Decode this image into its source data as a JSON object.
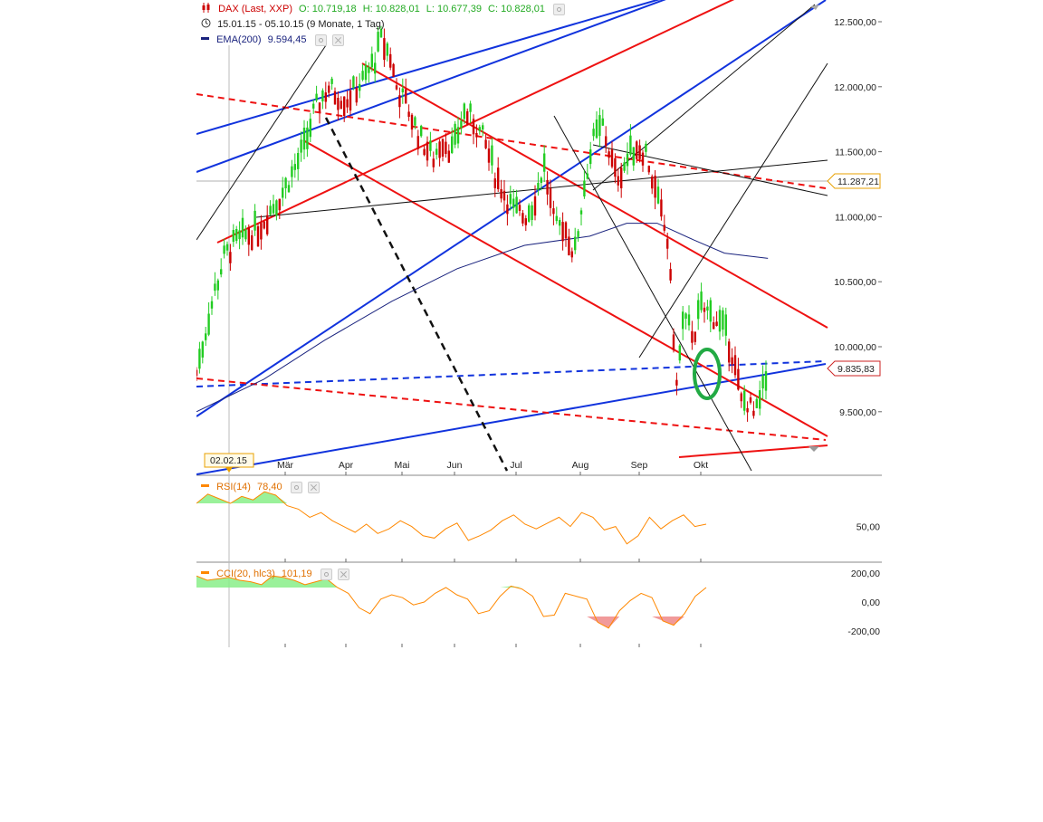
{
  "header": {
    "symbol": "DAX (Last, XXP)",
    "open": "O: 10.719,18",
    "high": "H: 10.828,01",
    "low": "L: 10.677,39",
    "close": "C: 10.828,01",
    "period": "15.01.15 - 05.10.15 (9 Monate, 1 Tag)",
    "ema_label": "EMA(200)",
    "ema_value": "9.594,45"
  },
  "indicators": {
    "rsi_label": "RSI(14)",
    "rsi_value": "78,40",
    "cci_label": "CCI(20, hlc3)",
    "cci_value": "101,19"
  },
  "colors": {
    "up": "#22cc22",
    "down": "#cc0000",
    "red_line": "#ee1111",
    "blue_line": "#1133dd",
    "ema": "#1a237e",
    "oscillator": "#ff8800",
    "green_fill": "#88ee88",
    "red_fill": "#ee8888",
    "marker_green": "#22aa44"
  },
  "chart_data": {
    "type": "candlestick",
    "y_axis_ticks": [
      "12.500,00",
      "12.000,00",
      "11.500,00",
      "11.000,00",
      "10.500,00",
      "10.000,00",
      "9.500,00"
    ],
    "x_axis_ticks": [
      "Mär",
      "Apr",
      "Mai",
      "Jun",
      "Jul",
      "Aug",
      "Sep",
      "Okt"
    ],
    "date_badge": "02.02.15",
    "price_labels": [
      "11.287,21",
      "9.835,83"
    ],
    "rsi_ticks": [
      "50,00"
    ],
    "cci_ticks": [
      "200,00",
      "0,00",
      "-200,00"
    ],
    "price_path": [
      [
        "2015-01-15",
        9800
      ],
      [
        "2015-01-19",
        10100
      ],
      [
        "2015-01-23",
        10400
      ],
      [
        "2015-01-28",
        10700
      ],
      [
        "2015-02-02",
        10800
      ],
      [
        "2015-02-06",
        10850
      ],
      [
        "2015-02-12",
        10900
      ],
      [
        "2015-02-18",
        11050
      ],
      [
        "2015-02-24",
        11200
      ],
      [
        "2015-03-02",
        11400
      ],
      [
        "2015-03-06",
        11550
      ],
      [
        "2015-03-10",
        11800
      ],
      [
        "2015-03-13",
        11900
      ],
      [
        "2015-03-17",
        12000
      ],
      [
        "2015-03-20",
        11950
      ],
      [
        "2015-03-25",
        11900
      ],
      [
        "2015-03-30",
        12000
      ],
      [
        "2015-04-02",
        12050
      ],
      [
        "2015-04-07",
        12200
      ],
      [
        "2015-04-10",
        12350
      ],
      [
        "2015-04-14",
        12250
      ],
      [
        "2015-04-17",
        12000
      ],
      [
        "2015-04-22",
        11850
      ],
      [
        "2015-04-28",
        11600
      ],
      [
        "2015-05-04",
        11450
      ],
      [
        "2015-05-08",
        11600
      ],
      [
        "2015-05-13",
        11500
      ],
      [
        "2015-05-18",
        11800
      ],
      [
        "2015-05-22",
        11750
      ],
      [
        "2015-05-27",
        11600
      ],
      [
        "2015-06-01",
        11350
      ],
      [
        "2015-06-05",
        11200
      ],
      [
        "2015-06-10",
        11050
      ],
      [
        "2015-06-15",
        11000
      ],
      [
        "2015-06-19",
        11100
      ],
      [
        "2015-06-24",
        11400
      ],
      [
        "2015-06-29",
        10900
      ],
      [
        "2015-07-03",
        10950
      ],
      [
        "2015-07-08",
        10700
      ],
      [
        "2015-07-13",
        11300
      ],
      [
        "2015-07-17",
        11600
      ],
      [
        "2015-07-21",
        11700
      ],
      [
        "2015-07-27",
        11300
      ],
      [
        "2015-07-31",
        11400
      ],
      [
        "2015-08-05",
        11550
      ],
      [
        "2015-08-10",
        11500
      ],
      [
        "2015-08-14",
        11200
      ],
      [
        "2015-08-20",
        10800
      ],
      [
        "2015-08-24",
        9700
      ],
      [
        "2015-08-27",
        10200
      ],
      [
        "2015-09-01",
        10100
      ],
      [
        "2015-09-04",
        10300
      ],
      [
        "2015-09-09",
        10250
      ],
      [
        "2015-09-14",
        10150
      ],
      [
        "2015-09-18",
        10000
      ],
      [
        "2015-09-23",
        9550
      ],
      [
        "2015-09-25",
        9600
      ],
      [
        "2015-09-29",
        9450
      ],
      [
        "2015-10-01",
        9550
      ],
      [
        "2015-10-05",
        9800
      ]
    ],
    "ema200": [
      [
        "2015-01-15",
        9500
      ],
      [
        "2015-02-15",
        9750
      ],
      [
        "2015-03-15",
        10050
      ],
      [
        "2015-04-15",
        10350
      ],
      [
        "2015-05-15",
        10600
      ],
      [
        "2015-06-15",
        10780
      ],
      [
        "2015-07-15",
        10850
      ],
      [
        "2015-08-01",
        10950
      ],
      [
        "2015-08-15",
        10950
      ],
      [
        "2015-09-01",
        10820
      ],
      [
        "2015-09-15",
        10720
      ],
      [
        "2015-10-05",
        10680
      ]
    ],
    "rsi": [
      70,
      78,
      74,
      70,
      76,
      73,
      80,
      77,
      68,
      65,
      58,
      62,
      55,
      50,
      45,
      52,
      44,
      48,
      55,
      50,
      42,
      40,
      48,
      53,
      38,
      42,
      47,
      55,
      60,
      52,
      48,
      53,
      58,
      50,
      62,
      58,
      47,
      50,
      35,
      42,
      58,
      48,
      55,
      60,
      50,
      52
    ],
    "cci": [
      180,
      150,
      160,
      170,
      150,
      140,
      120,
      180,
      170,
      150,
      120,
      140,
      160,
      100,
      60,
      -40,
      -80,
      20,
      50,
      30,
      -20,
      0,
      60,
      100,
      50,
      20,
      -80,
      -60,
      40,
      110,
      90,
      40,
      -100,
      -90,
      60,
      40,
      20,
      -140,
      -180,
      -60,
      10,
      60,
      30,
      -130,
      -160,
      -80,
      40,
      100
    ]
  }
}
